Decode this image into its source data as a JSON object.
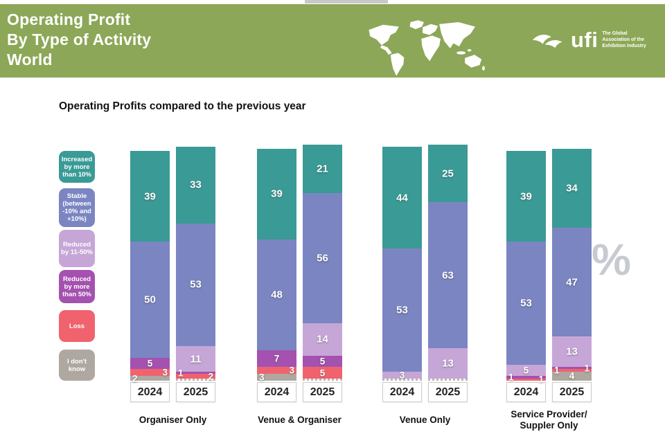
{
  "header": {
    "title_lines": [
      "Operating Profit",
      "By Type of Activity",
      "World"
    ],
    "logo": {
      "brand": "ufi",
      "tagline_lines": [
        "The Global",
        "Association of the",
        "Exhibition Industry"
      ]
    }
  },
  "chart": {
    "subtitle": "Operating Profits compared to the previous year",
    "unit_watermark": "%",
    "colors": {
      "increased": "#3A9A96",
      "stable": "#7B85C2",
      "reduced_11_50": "#C6A6D7",
      "reduced_over_50": "#A451AF",
      "loss": "#F0636E",
      "dont_know": "#AEA8A1",
      "banner_green": "#8CA757"
    },
    "legend": [
      {
        "key": "increased",
        "label": "Increased by more than 10%"
      },
      {
        "key": "stable",
        "label": "Stable (between -10% and +10%)"
      },
      {
        "key": "reduced_11_50",
        "label": "Reduced by 11-50%"
      },
      {
        "key": "reduced_over_50",
        "label": "Reduced by more than 50%"
      },
      {
        "key": "loss",
        "label": "Loss"
      },
      {
        "key": "dont_know",
        "label": "I don't know"
      }
    ]
  },
  "chart_data": {
    "type": "bar",
    "stacked": true,
    "unit": "%",
    "value_range": [
      0,
      100
    ],
    "segment_order": [
      "increased",
      "stable",
      "reduced_11_50",
      "reduced_over_50",
      "loss",
      "dont_know"
    ],
    "years": [
      "2024",
      "2025"
    ],
    "groups": [
      {
        "label_lines": [
          "Organiser Only"
        ],
        "bars": [
          {
            "year": "2024",
            "dotted_base": false,
            "segments": [
              {
                "key": "increased",
                "value": 39,
                "align": "center"
              },
              {
                "key": "stable",
                "value": 50,
                "align": "center"
              },
              {
                "key": "reduced_over_50",
                "value": 5,
                "align": "center"
              },
              {
                "key": "loss",
                "value": 3,
                "align": "right"
              },
              {
                "key": "dont_know",
                "value": 2,
                "align": "left"
              }
            ]
          },
          {
            "year": "2025",
            "dotted_base": true,
            "segments": [
              {
                "key": "increased",
                "value": 33,
                "align": "center"
              },
              {
                "key": "stable",
                "value": 53,
                "align": "center"
              },
              {
                "key": "reduced_11_50",
                "value": 11,
                "align": "center"
              },
              {
                "key": "reduced_over_50",
                "value": 1,
                "align": "left"
              },
              {
                "key": "loss",
                "value": 2,
                "align": "right"
              }
            ]
          }
        ]
      },
      {
        "label_lines": [
          "Venue & Organiser"
        ],
        "bars": [
          {
            "year": "2024",
            "dotted_base": false,
            "segments": [
              {
                "key": "increased",
                "value": 39,
                "align": "center"
              },
              {
                "key": "stable",
                "value": 48,
                "align": "center"
              },
              {
                "key": "reduced_over_50",
                "value": 7,
                "align": "center"
              },
              {
                "key": "loss",
                "value": 3,
                "align": "right"
              },
              {
                "key": "dont_know",
                "value": 3,
                "align": "left"
              }
            ]
          },
          {
            "year": "2025",
            "dotted_base": true,
            "segments": [
              {
                "key": "increased",
                "value": 21,
                "align": "center"
              },
              {
                "key": "stable",
                "value": 56,
                "align": "center"
              },
              {
                "key": "reduced_11_50",
                "value": 14,
                "align": "center"
              },
              {
                "key": "reduced_over_50",
                "value": 5,
                "align": "center"
              },
              {
                "key": "loss",
                "value": 5,
                "align": "center"
              }
            ]
          }
        ]
      },
      {
        "label_lines": [
          "Venue Only"
        ],
        "bars": [
          {
            "year": "2024",
            "dotted_base": true,
            "segments": [
              {
                "key": "increased",
                "value": 44,
                "align": "center"
              },
              {
                "key": "stable",
                "value": 53,
                "align": "center"
              },
              {
                "key": "reduced_11_50",
                "value": 3,
                "align": "center"
              }
            ]
          },
          {
            "year": "2025",
            "dotted_base": true,
            "segments": [
              {
                "key": "increased",
                "value": 25,
                "align": "center"
              },
              {
                "key": "stable",
                "value": 63,
                "align": "center"
              },
              {
                "key": "reduced_11_50",
                "value": 13,
                "align": "center"
              }
            ]
          }
        ]
      },
      {
        "label_lines": [
          "Service Provider/",
          "Suppler Only"
        ],
        "bars": [
          {
            "year": "2024",
            "dotted_base": false,
            "segments": [
              {
                "key": "increased",
                "value": 39,
                "align": "center"
              },
              {
                "key": "stable",
                "value": 53,
                "align": "center"
              },
              {
                "key": "reduced_11_50",
                "value": 5,
                "align": "center"
              },
              {
                "key": "reduced_over_50",
                "value": 1,
                "align": "left"
              },
              {
                "key": "loss",
                "value": 1,
                "align": "right"
              }
            ]
          },
          {
            "year": "2025",
            "dotted_base": false,
            "segments": [
              {
                "key": "increased",
                "value": 34,
                "align": "center"
              },
              {
                "key": "stable",
                "value": 47,
                "align": "center"
              },
              {
                "key": "reduced_11_50",
                "value": 13,
                "align": "center"
              },
              {
                "key": "reduced_over_50",
                "value": 1,
                "align": "right"
              },
              {
                "key": "loss",
                "value": 1,
                "align": "left"
              },
              {
                "key": "dont_know",
                "value": 4,
                "align": "center"
              }
            ]
          }
        ]
      }
    ]
  }
}
